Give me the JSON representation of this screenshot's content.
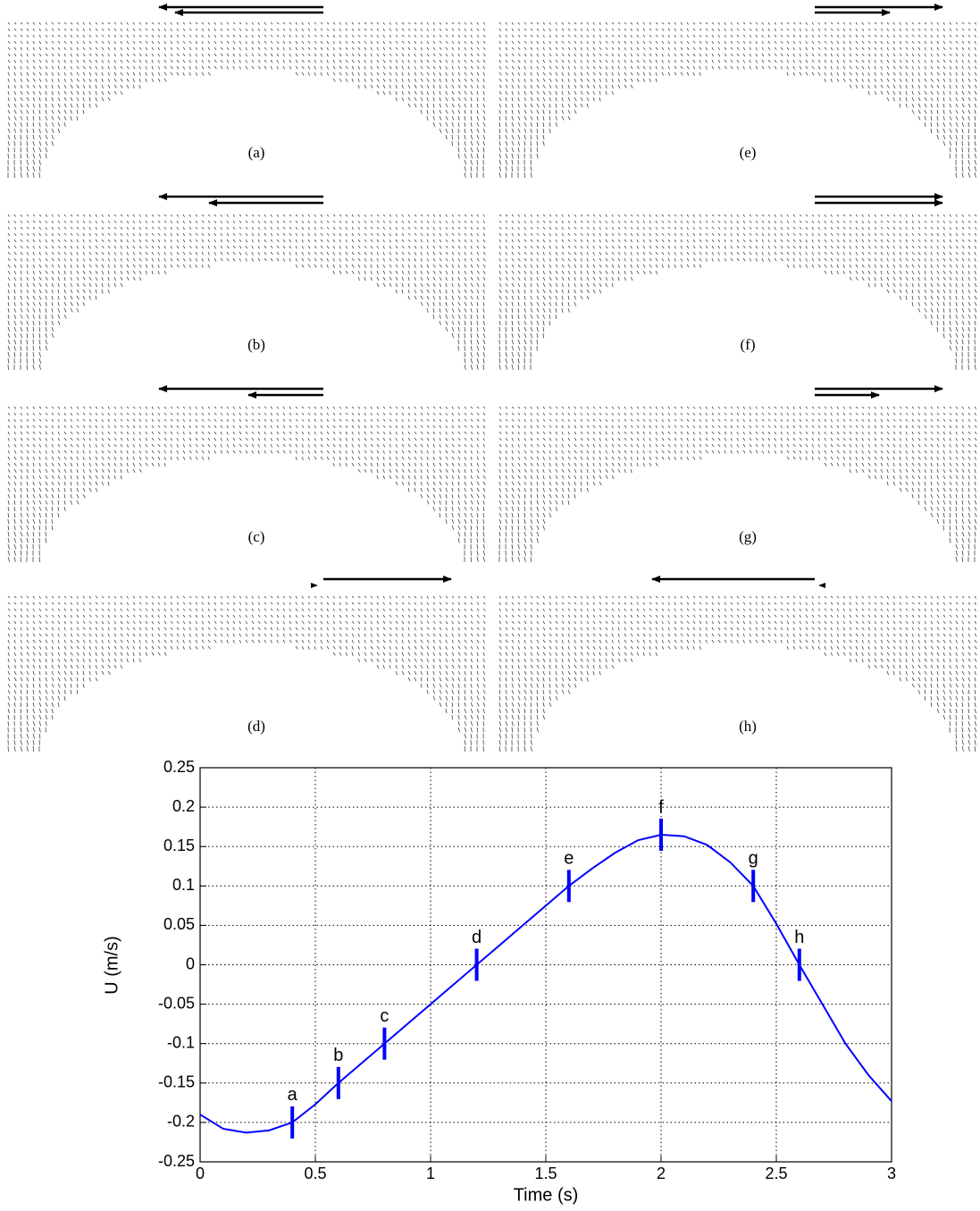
{
  "panels": [
    "(a)",
    "(e)",
    "(b)",
    "(f)",
    "(c)",
    "(g)",
    "(d)",
    "(h)"
  ],
  "chart_data": {
    "type": "line",
    "xlabel": "Time (s)",
    "ylabel": "U (m/s)",
    "x": [
      0,
      0.1,
      0.2,
      0.3,
      0.4,
      0.5,
      0.6,
      0.7,
      0.8,
      0.9,
      1.0,
      1.1,
      1.2,
      1.3,
      1.4,
      1.5,
      1.6,
      1.7,
      1.8,
      1.9,
      2.0,
      2.1,
      2.2,
      2.3,
      2.4,
      2.5,
      2.6,
      2.7,
      2.8,
      2.9,
      3.0
    ],
    "series": [
      {
        "color": "#0000ff",
        "values": [
          -0.19,
          -0.208,
          -0.213,
          -0.21,
          -0.2,
          -0.177,
          -0.15,
          -0.125,
          -0.1,
          -0.075,
          -0.05,
          -0.025,
          0,
          0.025,
          0.05,
          0.075,
          0.1,
          0.122,
          0.142,
          0.158,
          0.165,
          0.163,
          0.152,
          0.13,
          0.1,
          0.052,
          0,
          -0.05,
          -0.1,
          -0.14,
          -0.173
        ]
      }
    ],
    "annotations": [
      {
        "text": "a",
        "x": 0.4,
        "y": -0.2
      },
      {
        "text": "b",
        "x": 0.6,
        "y": -0.15
      },
      {
        "text": "c",
        "x": 0.8,
        "y": -0.1
      },
      {
        "text": "d",
        "x": 1.2,
        "y": 0
      },
      {
        "text": "e",
        "x": 1.6,
        "y": 0.1
      },
      {
        "text": "f",
        "x": 2.0,
        "y": 0.165
      },
      {
        "text": "g",
        "x": 2.4,
        "y": 0.1
      },
      {
        "text": "h",
        "x": 2.6,
        "y": 0
      }
    ],
    "xlim": [
      0,
      3
    ],
    "xticks": [
      0,
      0.5,
      1,
      1.5,
      2,
      2.5,
      3
    ],
    "ylim": [
      -0.25,
      0.25
    ],
    "yticks": [
      -0.25,
      -0.2,
      -0.15,
      -0.1,
      -0.05,
      0,
      0.05,
      0.1,
      0.15,
      0.2,
      0.25
    ],
    "grid": true
  }
}
